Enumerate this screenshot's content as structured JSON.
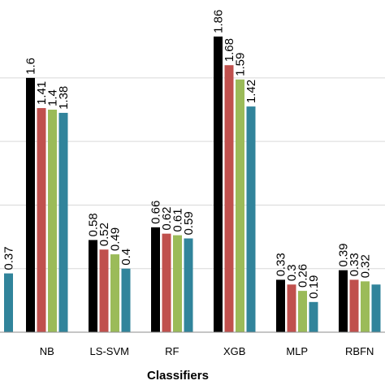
{
  "chart_data": {
    "type": "bar",
    "xlabel": "Classifiers",
    "ylabel": "",
    "ylim": [
      0,
      1.86
    ],
    "grid": true,
    "categories": [
      "NB",
      "LS-SVM",
      "RF",
      "XGB",
      "MLP",
      "RBFN"
    ],
    "series": [
      {
        "values": [
          1.6,
          0.58,
          0.66,
          1.86,
          0.33,
          0.39
        ]
      },
      {
        "values": [
          1.41,
          0.52,
          0.62,
          1.68,
          0.3,
          0.33
        ]
      },
      {
        "values": [
          1.4,
          0.49,
          0.61,
          1.59,
          0.26,
          0.32
        ]
      },
      {
        "values": [
          1.38,
          0.4,
          0.59,
          1.42,
          0.19,
          0.3
        ]
      }
    ],
    "partial_left_group": {
      "values": [
        0.37
      ]
    },
    "labels": {
      "series_0": [
        "1.6",
        "0.58",
        "0.66",
        "1.86",
        "0.33",
        "0.39"
      ],
      "series_1": [
        "1.41",
        "0.52",
        "0.62",
        "1.68",
        "0.3",
        "0.33"
      ],
      "series_2": [
        "1.4",
        "0.49",
        "0.61",
        "1.59",
        "0.26",
        "0.32"
      ],
      "series_3": [
        "1.38",
        "0.4",
        "0.59",
        "1.42",
        "0.19",
        ""
      ],
      "partial_left": [
        "0.37"
      ]
    },
    "colors": [
      "#000000",
      "#c0504d",
      "#9bbb59",
      "#31849b"
    ]
  }
}
